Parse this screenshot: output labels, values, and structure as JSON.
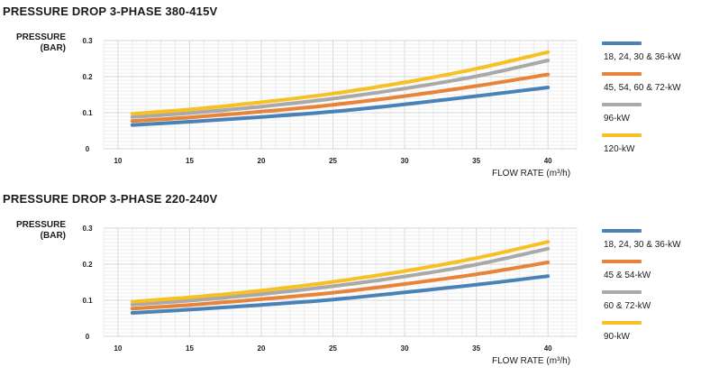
{
  "chart_data": [
    {
      "type": "line",
      "title": "PRESSURE DROP 3-PHASE 380-415V",
      "ylabel": "PRESSURE\n(BAR)",
      "xlabel": "FLOW RATE (m³/h)",
      "xlim": [
        9,
        42
      ],
      "ylim": [
        0,
        0.3
      ],
      "xticks": [
        10,
        15,
        20,
        25,
        30,
        35,
        40
      ],
      "xtick_labels": [
        "10",
        "15",
        "20",
        "25",
        "30",
        "35",
        "40"
      ],
      "yticks": [
        0,
        0.1,
        0.2,
        0.3
      ],
      "ytick_labels": [
        "0",
        "0.1",
        "0.2",
        "0.3"
      ],
      "grid": true,
      "legend_position": "right",
      "x": [
        11,
        15,
        20,
        25,
        30,
        35,
        40
      ],
      "series": [
        {
          "name": "18, 24, 30 & 36-kW",
          "color": "#4a82b8",
          "values": [
            0.066,
            0.075,
            0.088,
            0.103,
            0.123,
            0.146,
            0.17
          ]
        },
        {
          "name": "45, 54, 60 & 72-kW",
          "color": "#e8833a",
          "values": [
            0.077,
            0.087,
            0.103,
            0.122,
            0.146,
            0.174,
            0.206
          ]
        },
        {
          "name": "96-kW",
          "color": "#a9a9a9",
          "values": [
            0.088,
            0.099,
            0.117,
            0.139,
            0.167,
            0.201,
            0.245
          ]
        },
        {
          "name": "120-kW",
          "color": "#f5c125",
          "values": [
            0.097,
            0.109,
            0.129,
            0.153,
            0.184,
            0.222,
            0.268
          ]
        }
      ]
    },
    {
      "type": "line",
      "title": "PRESSURE DROP 3-PHASE 220-240V",
      "ylabel": "PRESSURE\n(BAR)",
      "xlabel": "FLOW RATE (m³/h)",
      "xlim": [
        9,
        42
      ],
      "ylim": [
        0,
        0.3
      ],
      "xticks": [
        10,
        15,
        20,
        25,
        30,
        35,
        40
      ],
      "xtick_labels": [
        "10",
        "15",
        "20",
        "25",
        "30",
        "35",
        "40"
      ],
      "yticks": [
        0,
        0.1,
        0.2,
        0.3
      ],
      "ytick_labels": [
        "0",
        "0.1",
        "0.2",
        "0.3"
      ],
      "grid": true,
      "legend_position": "right",
      "x": [
        11,
        15,
        20,
        25,
        30,
        35,
        40
      ],
      "series": [
        {
          "name": "18, 24, 30 & 36-kW",
          "color": "#4a82b8",
          "values": [
            0.065,
            0.074,
            0.087,
            0.102,
            0.122,
            0.143,
            0.167
          ]
        },
        {
          "name": "45 & 54-kW",
          "color": "#e8833a",
          "values": [
            0.077,
            0.087,
            0.103,
            0.121,
            0.145,
            0.172,
            0.205
          ]
        },
        {
          "name": "60 & 72-kW",
          "color": "#a9a9a9",
          "values": [
            0.088,
            0.099,
            0.117,
            0.139,
            0.166,
            0.199,
            0.243
          ]
        },
        {
          "name": "90-kW",
          "color": "#f5c125",
          "values": [
            0.096,
            0.108,
            0.127,
            0.151,
            0.181,
            0.217,
            0.262
          ]
        }
      ]
    }
  ]
}
